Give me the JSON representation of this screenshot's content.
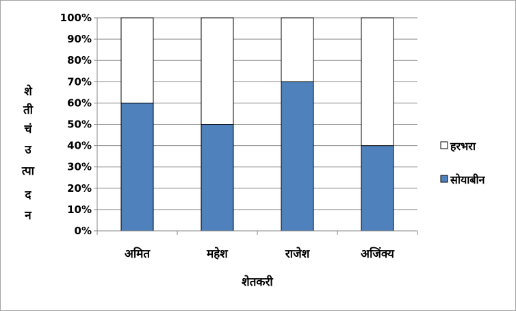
{
  "chart_data": {
    "type": "bar",
    "stacked": true,
    "percent": true,
    "xlabel": "शेतकरी",
    "ylabel": "शेतीचं उत्पादन",
    "ylabel_chars": [
      "शे",
      "ती",
      "चं",
      "उ",
      "त्पा",
      "द",
      "न"
    ],
    "categories": [
      "अमित",
      "महेश",
      "राजेश",
      "अजिंक्य"
    ],
    "series": [
      {
        "name": "सोयाबीन",
        "values": [
          60,
          50,
          70,
          40
        ],
        "color": "#4f81bd"
      },
      {
        "name": "हरभरा",
        "values": [
          40,
          50,
          30,
          60
        ],
        "color": "#ffffff"
      }
    ],
    "ylim": [
      0,
      100
    ],
    "yticks": [
      "0%",
      "10%",
      "20%",
      "30%",
      "40%",
      "50%",
      "60%",
      "70%",
      "80%",
      "90%",
      "100%"
    ],
    "grid": true,
    "legend": "right"
  }
}
